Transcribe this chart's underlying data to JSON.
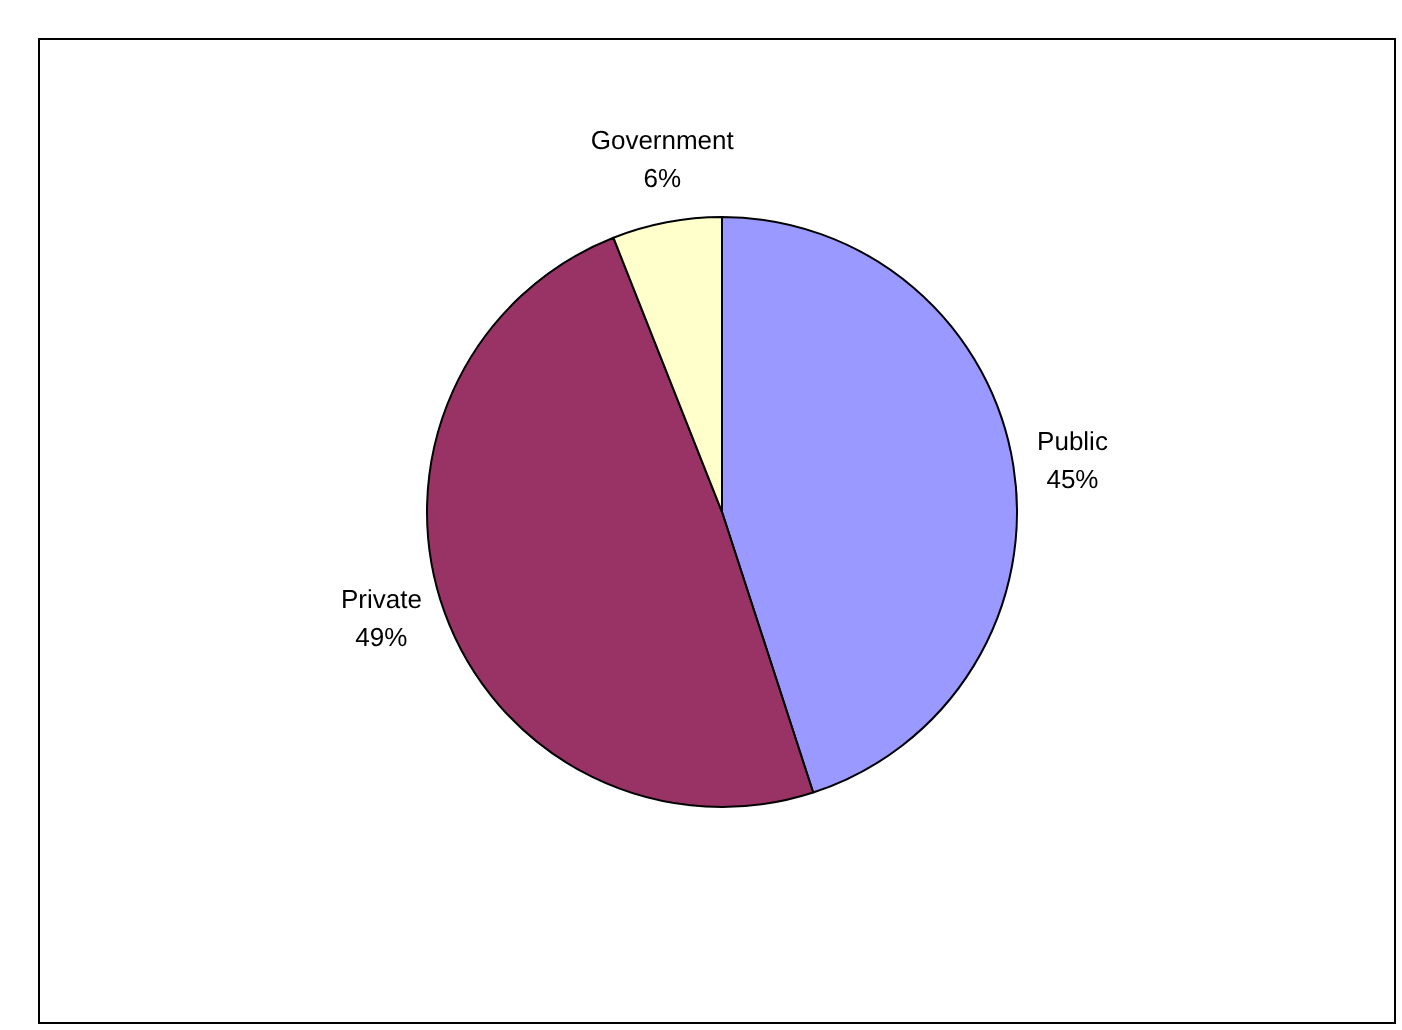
{
  "chart_data": {
    "type": "pie",
    "categories": [
      "Public",
      "Private",
      "Government"
    ],
    "values": [
      45,
      49,
      6
    ],
    "value_labels": [
      "45%",
      "49%",
      "6%"
    ],
    "colors": [
      "#9999ff",
      "#993366",
      "#ffffcc"
    ],
    "legend": false
  }
}
